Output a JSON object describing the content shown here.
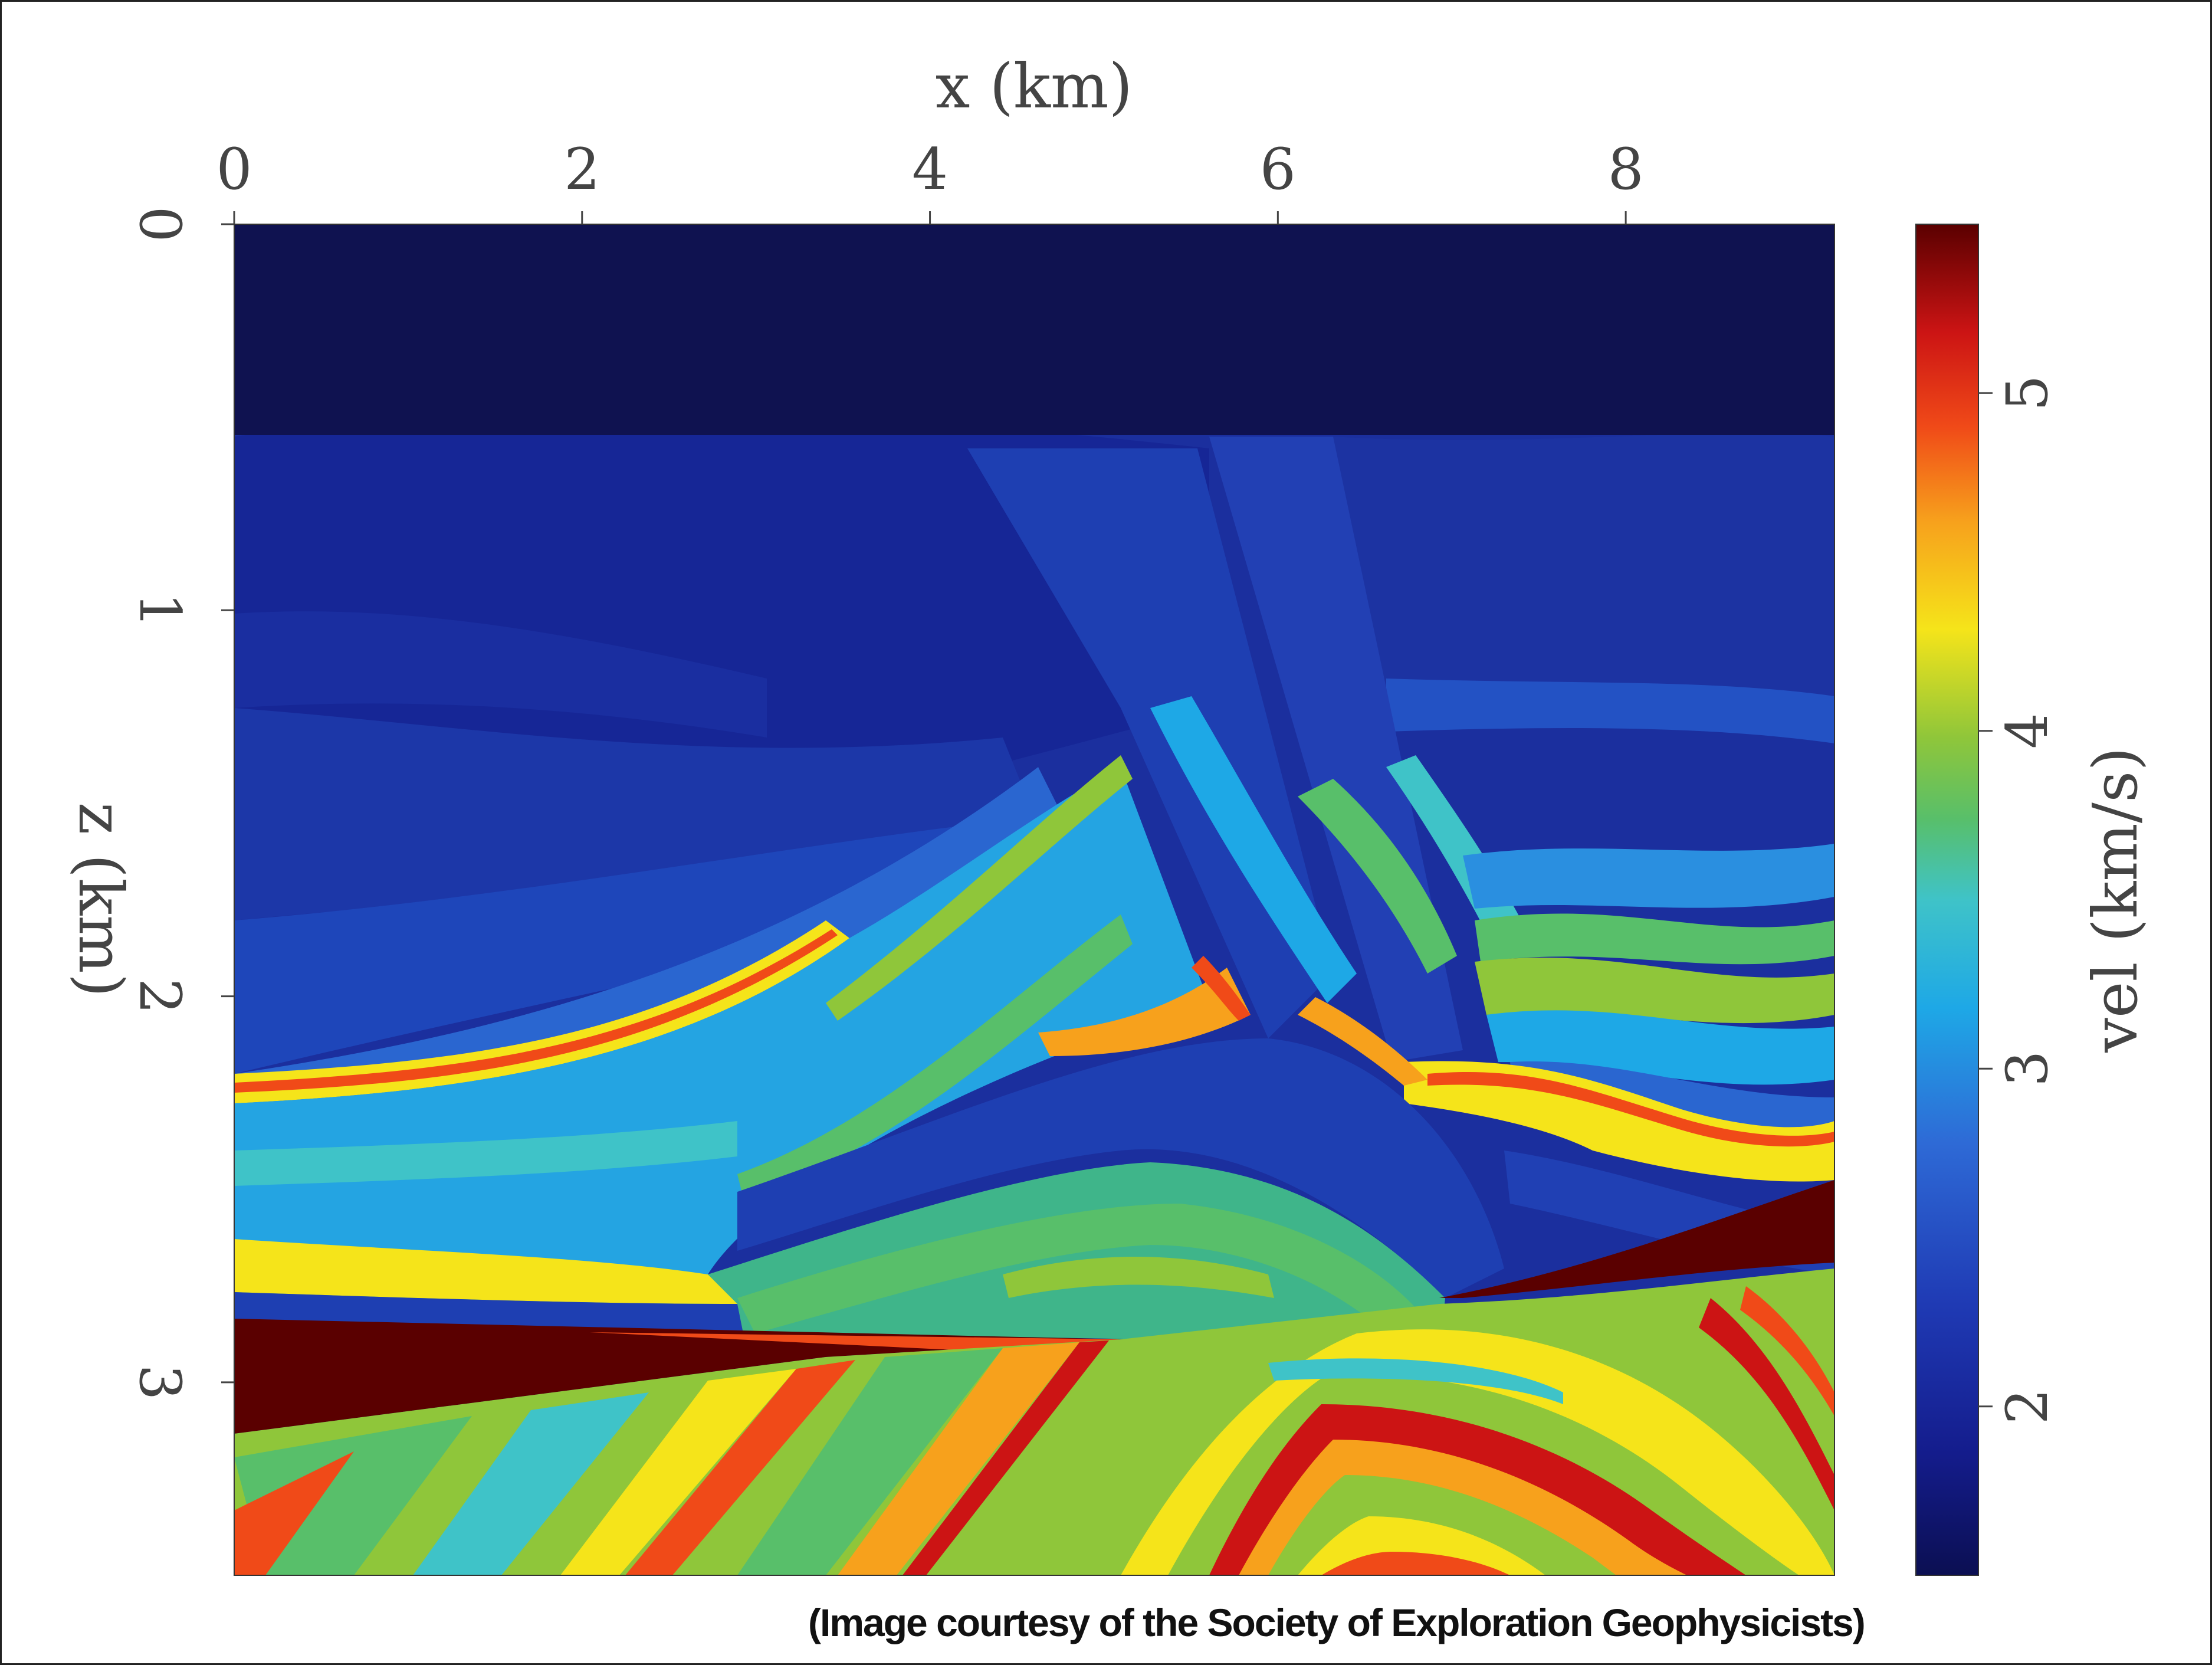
{
  "chart_data": {
    "type": "heatmap",
    "title": "",
    "xlabel": "x (km)",
    "ylabel": "z (km)",
    "colorbar_label": "vel (km/s)",
    "x_ticks": [
      "0",
      "2",
      "4",
      "6",
      "8"
    ],
    "y_ticks": [
      "0",
      "1",
      "2",
      "3"
    ],
    "colorbar_ticks": [
      "2",
      "3",
      "4",
      "5"
    ],
    "xlim": [
      0,
      9.2
    ],
    "ylim": [
      0,
      3.5
    ],
    "clim": [
      1.5,
      5.5
    ],
    "x_axis_position": "top",
    "y_axis_inverted": true,
    "colormap": "jet",
    "grid": false,
    "features": [
      {
        "name": "water layer",
        "z_top": 0,
        "z_bottom": 0.55,
        "vel": 1.6
      },
      {
        "name": "high-velocity wedge left",
        "x": [
          0,
          5.1
        ],
        "z_range": [
          2.82,
          3.15
        ],
        "vel": 5.4
      },
      {
        "name": "high-velocity wedge right",
        "x": [
          7.0,
          9.2
        ],
        "z_range": [
          2.5,
          2.8
        ],
        "vel": 5.4
      }
    ]
  },
  "caption": "(Image courtesy of the Society of Exploration Geophysicists)",
  "colors": {
    "jet": [
      "#0b0f52",
      "#141c8c",
      "#1f3ab4",
      "#2e6ad6",
      "#1ea8e6",
      "#3fc3c8",
      "#58bf6a",
      "#8fc63a",
      "#c9d628",
      "#f5e41a",
      "#f7a11c",
      "#f04a18",
      "#cc1414",
      "#5a0000"
    ]
  }
}
